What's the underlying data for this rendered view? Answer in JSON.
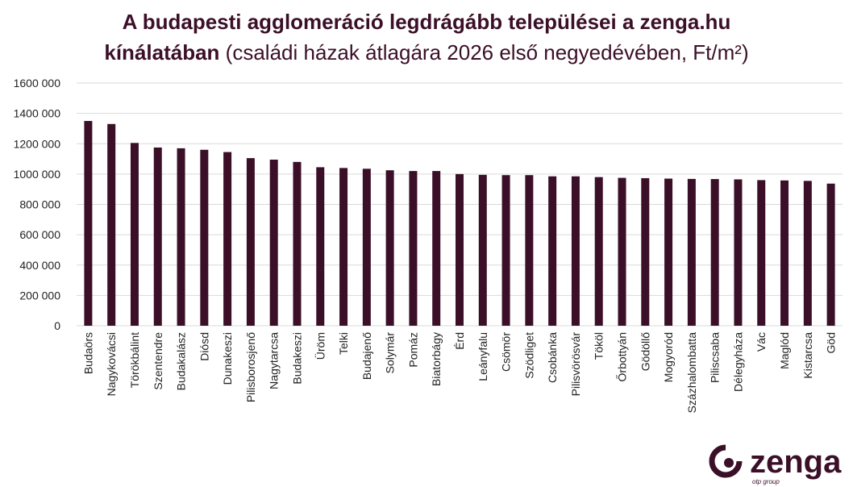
{
  "chart_data": {
    "type": "bar",
    "title": "A budapesti agglomeráció legdrágább települései a zenga.hu kínálatában",
    "subtitle": "(családi házak átlagára 2026 első negyedévében, Ft/m²)",
    "categories": [
      "Budaörs",
      "Nagykovácsi",
      "Törökbálint",
      "Szentendre",
      "Budakalász",
      "Diósd",
      "Dunakeszi",
      "Pilisborosjenő",
      "Nagytarcsa",
      "Budakeszi",
      "Üröm",
      "Telki",
      "Budajenő",
      "Solymár",
      "Pomáz",
      "Biatorbágy",
      "Érd",
      "Leányfalu",
      "Csömör",
      "Szödliget",
      "Csobánka",
      "Pilisvörösvár",
      "Tököl",
      "Őrbottyán",
      "Gödöllő",
      "Mogyoród",
      "Százhalombatta",
      "Piliscsaba",
      "Délegyháza",
      "Vác",
      "Maglód",
      "Kistarcsa",
      "Göd"
    ],
    "values": [
      1350000,
      1330000,
      1205000,
      1175000,
      1170000,
      1160000,
      1145000,
      1105000,
      1095000,
      1080000,
      1045000,
      1040000,
      1035000,
      1025000,
      1020000,
      1020000,
      1000000,
      995000,
      993000,
      993000,
      985000,
      985000,
      980000,
      975000,
      973000,
      970000,
      968000,
      967000,
      965000,
      960000,
      958000,
      955000,
      937000
    ],
    "color": "#3b0f28",
    "ylim": [
      0,
      1600000
    ],
    "yticks": [
      0,
      {
        "value": 200000,
        "label": "200 000"
      },
      {
        "value": 400000,
        "label": "400 000"
      },
      {
        "value": 600000,
        "label": "600 000"
      },
      {
        "value": 800000,
        "label": "800 000"
      },
      {
        "value": 1000000,
        "label": "1000 000"
      },
      {
        "value": 1200000,
        "label": "1200 000"
      },
      {
        "value": 1400000,
        "label": "1400 000"
      },
      {
        "value": 1600000,
        "label": "1600 000"
      }
    ],
    "grid": true
  },
  "brand": {
    "name": "zenga",
    "tagline": "otp group"
  }
}
